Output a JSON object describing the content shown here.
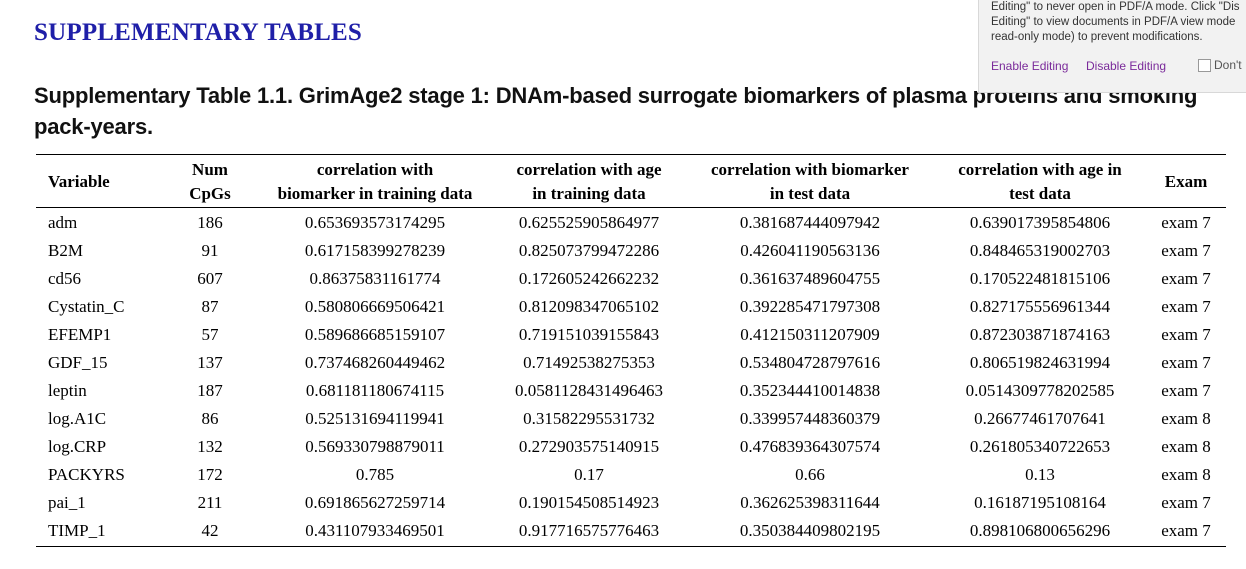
{
  "document": {
    "section_heading": "SUPPLEMENTARY TABLES",
    "table_caption": "Supplementary Table 1.1. GrimAge2 stage 1: DNAm-based surrogate biomarkers of plasma proteins and smoking pack-years."
  },
  "table": {
    "headers": [
      [
        "Variable"
      ],
      [
        "Num",
        "CpGs"
      ],
      [
        "correlation with",
        "biomarker in training data"
      ],
      [
        "correlation with age",
        "in training data"
      ],
      [
        "correlation with biomarker",
        "in test data"
      ],
      [
        "correlation with age in",
        "test data"
      ],
      [
        "Exam"
      ]
    ],
    "rows": [
      [
        "adm",
        "186",
        "0.653693573174295",
        "0.625525905864977",
        "0.381687444097942",
        "0.639017395854806",
        "exam 7"
      ],
      [
        "B2M",
        "91",
        "0.617158399278239",
        "0.825073799472286",
        "0.426041190563136",
        "0.848465319002703",
        "exam 7"
      ],
      [
        "cd56",
        "607",
        "0.86375831161774",
        "0.172605242662232",
        "0.361637489604755",
        "0.170522481815106",
        "exam 7"
      ],
      [
        "Cystatin_C",
        "87",
        "0.580806669506421",
        "0.812098347065102",
        "0.392285471797308",
        "0.827175556961344",
        "exam 7"
      ],
      [
        "EFEMP1",
        "57",
        "0.589686685159107",
        "0.719151039155843",
        "0.412150311207909",
        "0.872303871874163",
        "exam 7"
      ],
      [
        "GDF_15",
        "137",
        "0.737468260449462",
        "0.71492538275353",
        "0.534804728797616",
        "0.806519824631994",
        "exam 7"
      ],
      [
        "leptin",
        "187",
        "0.681181180674115",
        "0.0581128431496463",
        "0.352344410014838",
        "0.0514309778202585",
        "exam 7"
      ],
      [
        "log.A1C",
        "86",
        "0.525131694119941",
        "0.31582295531732",
        "0.339957448360379",
        "0.26677461707641",
        "exam 8"
      ],
      [
        "log.CRP",
        "132",
        "0.569330798879011",
        "0.272903575140915",
        "0.476839364307574",
        "0.261805340722653",
        "exam 8"
      ],
      [
        "PACKYRS",
        "172",
        "0.785",
        "0.17",
        "0.66",
        "0.13",
        "exam 8"
      ],
      [
        "pai_1",
        "211",
        "0.691865627259714",
        "0.190154508514923",
        "0.362625398311644",
        "0.16187195108164",
        "exam 7"
      ],
      [
        "TIMP_1",
        "42",
        "0.431107933469501",
        "0.917716575776463",
        "0.350384409802195",
        "0.898106800656296",
        "exam 7"
      ]
    ]
  },
  "popup": {
    "lines": [
      "Editing\" to never open in PDF/A mode. Click \"Dis",
      "Editing\" to view documents in PDF/A view mode",
      "read-only mode) to prevent modifications."
    ],
    "enable_label": "Enable Editing",
    "disable_label": "Disable Editing",
    "dont_label": "Don't"
  }
}
